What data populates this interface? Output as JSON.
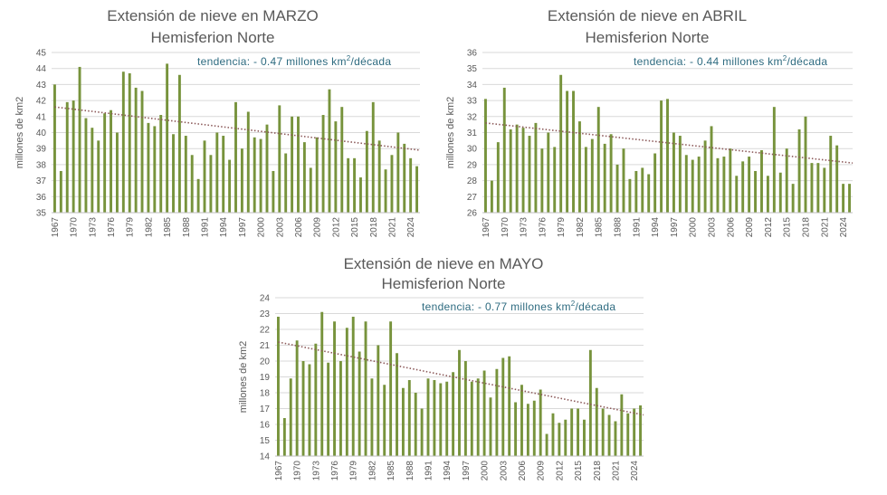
{
  "chart_data": [
    {
      "type": "bar",
      "title": "Extensión de nieve en MARZO",
      "subtitle": "Hemisferion Norte",
      "ylabel": "millones de km2",
      "ylim": [
        35,
        45
      ],
      "yticks": [
        35,
        36,
        37,
        38,
        39,
        40,
        41,
        42,
        43,
        44,
        45
      ],
      "x_start": 1967,
      "x_end": 2025,
      "xtick_labels": [
        "1967",
        "1970",
        "1973",
        "1976",
        "1979",
        "1982",
        "1985",
        "1988",
        "1991",
        "1994",
        "1997",
        "2000",
        "2003",
        "2006",
        "2009",
        "2012",
        "2015",
        "2018",
        "2021",
        "2024"
      ],
      "annotation_prefix": "tendencia: - 0.47 millones km",
      "annotation_sup": "2",
      "annotation_suffix": "/década",
      "trendline": [
        41.6,
        38.9
      ],
      "bar_color": "#77933c",
      "trend_color": "#8c5a5a",
      "values": [
        43.0,
        37.6,
        41.9,
        42.0,
        44.1,
        40.9,
        40.3,
        39.5,
        41.2,
        41.4,
        40.0,
        43.8,
        43.7,
        42.8,
        42.6,
        40.6,
        40.4,
        41.1,
        44.3,
        39.9,
        43.6,
        39.8,
        38.6,
        37.1,
        39.5,
        38.6,
        40.0,
        39.8,
        38.3,
        41.9,
        39.0,
        41.3,
        39.7,
        39.6,
        40.5,
        37.6,
        41.7,
        38.7,
        41.0,
        41.0,
        39.4,
        37.8,
        39.7,
        41.1,
        42.7,
        40.7,
        41.6,
        38.4,
        38.4,
        37.2,
        40.1,
        41.9,
        39.5,
        37.7,
        38.6,
        40.0,
        39.3,
        38.4,
        37.9
      ]
    },
    {
      "type": "bar",
      "title": "Extensión de nieve en ABRIL",
      "subtitle": "Hemisferion Norte",
      "ylabel": "millones de km2",
      "ylim": [
        26,
        36
      ],
      "yticks": [
        26,
        27,
        28,
        29,
        30,
        31,
        32,
        33,
        34,
        35,
        36
      ],
      "x_start": 1967,
      "x_end": 2025,
      "xtick_labels": [
        "1967",
        "1970",
        "1973",
        "1976",
        "1979",
        "1982",
        "1985",
        "1988",
        "1991",
        "1994",
        "1997",
        "2000",
        "2003",
        "2006",
        "2009",
        "2012",
        "2015",
        "2018",
        "2021",
        "2024"
      ],
      "annotation_prefix": "tendencia: - 0.44 millones km",
      "annotation_sup": "2",
      "annotation_suffix": "/década",
      "trendline": [
        31.6,
        29.1
      ],
      "bar_color": "#77933c",
      "trend_color": "#8c5a5a",
      "values": [
        33.1,
        28.0,
        30.4,
        33.8,
        31.2,
        31.5,
        31.3,
        30.8,
        31.6,
        30.0,
        31.0,
        30.1,
        34.6,
        33.6,
        33.6,
        31.7,
        30.1,
        30.6,
        32.6,
        30.3,
        30.9,
        29.0,
        30.0,
        28.1,
        28.6,
        28.8,
        28.4,
        29.7,
        33.0,
        33.1,
        31.0,
        30.8,
        29.6,
        29.3,
        29.5,
        30.5,
        31.4,
        29.4,
        29.5,
        30.0,
        28.3,
        29.2,
        29.5,
        28.6,
        29.9,
        28.3,
        32.6,
        28.5,
        30.0,
        27.8,
        31.2,
        32.0,
        29.1,
        29.1,
        28.8,
        30.8,
        30.2,
        27.8,
        27.8
      ]
    },
    {
      "type": "bar",
      "title": "Extensión de nieve en MAYO",
      "subtitle": "Hemisferion Norte",
      "ylabel": "millones de km2",
      "ylim": [
        14,
        24
      ],
      "yticks": [
        14,
        15,
        16,
        17,
        18,
        19,
        20,
        21,
        22,
        23,
        24
      ],
      "x_start": 1967,
      "x_end": 2025,
      "xtick_labels": [
        "1967",
        "1970",
        "1973",
        "1976",
        "1979",
        "1982",
        "1985",
        "1988",
        "1991",
        "1994",
        "1997",
        "2000",
        "2003",
        "2006",
        "2009",
        "2012",
        "2015",
        "2018",
        "2021",
        "2024"
      ],
      "annotation_prefix": "tendencia: - 0.77 millones km",
      "annotation_sup": "2",
      "annotation_suffix": "/década",
      "trendline": [
        21.2,
        16.6
      ],
      "bar_color": "#77933c",
      "trend_color": "#8c5a5a",
      "values": [
        22.8,
        16.4,
        18.9,
        21.3,
        20.0,
        19.8,
        21.1,
        23.1,
        19.9,
        22.5,
        20.0,
        22.1,
        22.8,
        20.6,
        22.5,
        18.9,
        21.0,
        18.5,
        22.5,
        20.5,
        18.3,
        18.8,
        18.0,
        17.0,
        18.9,
        18.8,
        18.6,
        18.7,
        19.3,
        20.7,
        20.0,
        18.7,
        18.9,
        19.4,
        17.7,
        19.5,
        20.2,
        20.3,
        17.4,
        18.5,
        17.3,
        17.5,
        18.2,
        15.4,
        16.7,
        16.1,
        16.3,
        17.0,
        17.0,
        16.3,
        20.7,
        18.3,
        17.0,
        16.6,
        16.2,
        17.9,
        16.7,
        17.0,
        17.2
      ]
    }
  ]
}
